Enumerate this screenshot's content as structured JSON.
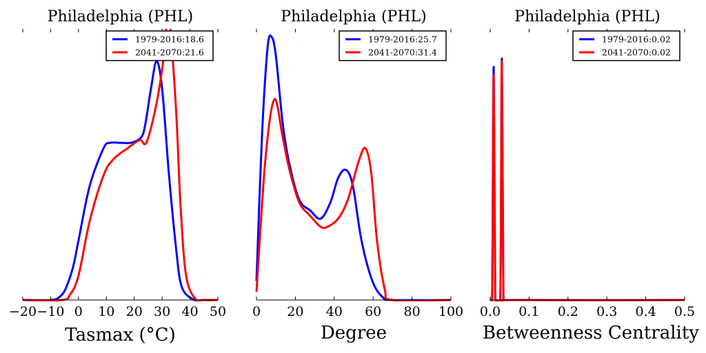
{
  "chart_data": [
    {
      "type": "line",
      "title": "Philadelphia (PHL)",
      "xlabel": "Tasmax ($^\\circ$C)",
      "xlabel_display": "Tasmax (°C)",
      "ylabel": "",
      "xlim": [
        -20,
        50
      ],
      "ylim": [
        0,
        1
      ],
      "xticks": [
        -20,
        -10,
        0,
        10,
        20,
        30,
        40,
        50
      ],
      "xtick_labels": [
        "−20",
        "−10",
        "0",
        "10",
        "20",
        "30",
        "40",
        "50"
      ],
      "grid": false,
      "legend_position": "top-right",
      "series": [
        {
          "name": "1979-2016:18.6",
          "color": "#0000ff",
          "x": [
            -20,
            -10,
            -7,
            -4.7,
            -2,
            0,
            4,
            9,
            11.4,
            15,
            18.8,
            22.5,
            24,
            26,
            28,
            30,
            32.4,
            35,
            37,
            41,
            45,
            50
          ],
          "y": [
            0,
            0,
            0.01,
            0.04,
            0.12,
            0.22,
            0.42,
            0.56,
            0.58,
            0.58,
            0.58,
            0.6,
            0.65,
            0.78,
            0.88,
            0.78,
            0.47,
            0.19,
            0.05,
            0.003,
            0,
            0
          ]
        },
        {
          "name": "2041-2070:21.6",
          "color": "#ff0000",
          "x": [
            -20,
            -6,
            -3,
            0,
            4,
            9,
            12.6,
            17.6,
            22,
            24.3,
            27.5,
            30,
            31,
            32.5,
            35,
            36.6,
            38.6,
            42,
            45,
            50
          ],
          "y": [
            0,
            0,
            0.02,
            0.09,
            0.29,
            0.46,
            0.52,
            0.56,
            0.59,
            0.58,
            0.7,
            0.85,
            0.95,
            1.05,
            0.7,
            0.35,
            0.09,
            0.003,
            0,
            0
          ]
        }
      ]
    },
    {
      "type": "line",
      "title": "Philadelphia (PHL)",
      "xlabel": "Degree",
      "xlabel_display": "Degree",
      "ylabel": "",
      "xlim": [
        0,
        100
      ],
      "ylim": [
        0,
        1
      ],
      "xticks": [
        0,
        20,
        40,
        60,
        80,
        100
      ],
      "xtick_labels": [
        "0",
        "20",
        "40",
        "60",
        "80",
        "100"
      ],
      "grid": false,
      "legend_position": "top-right",
      "series": [
        {
          "name": "1979-2016:25.7",
          "color": "#0000ff",
          "x": [
            0,
            2.8,
            5.7,
            7.8,
            10,
            13.5,
            17,
            22,
            27.7,
            33,
            38,
            42,
            46,
            49.6,
            54,
            59.6,
            65,
            70,
            100
          ],
          "y": [
            0.07,
            0.6,
            0.93,
            0.97,
            0.9,
            0.65,
            0.5,
            0.37,
            0.33,
            0.3,
            0.36,
            0.45,
            0.48,
            0.42,
            0.22,
            0.07,
            0.01,
            0,
            0
          ]
        },
        {
          "name": "2041-2070:31.4",
          "color": "#ff0000",
          "x": [
            0,
            4.6,
            9.2,
            13.5,
            17,
            22,
            27.7,
            33,
            36.5,
            42,
            47,
            52.5,
            56,
            59,
            62,
            66,
            70,
            100
          ],
          "y": [
            0.03,
            0.52,
            0.74,
            0.6,
            0.48,
            0.36,
            0.31,
            0.27,
            0.27,
            0.3,
            0.37,
            0.51,
            0.56,
            0.47,
            0.22,
            0.04,
            0,
            0
          ]
        }
      ]
    },
    {
      "type": "line",
      "title": "Philadelphia (PHL)",
      "xlabel": "Betweenness Centrality",
      "xlabel_display": "Betweenness Centrality",
      "ylabel": "",
      "xlim": [
        0,
        0.5
      ],
      "ylim": [
        0,
        1
      ],
      "xticks": [
        0,
        0.1,
        0.2,
        0.3,
        0.4,
        0.5
      ],
      "xtick_labels": [
        "0.0",
        "0.1",
        "0.2",
        "0.3",
        "0.4",
        "0.5"
      ],
      "grid": false,
      "legend_position": "top-right",
      "series": [
        {
          "name": "1979-2016:0.02",
          "color": "#0000ff",
          "x": [
            0,
            0.005,
            0.009,
            0.013,
            0.018,
            0.026,
            0.03,
            0.034,
            0.04,
            0.5
          ],
          "y": [
            0,
            0.01,
            0.86,
            0.01,
            0,
            0.01,
            0.89,
            0.01,
            0,
            0
          ]
        },
        {
          "name": "2041-2070:0.02",
          "color": "#ff0000",
          "x": [
            0,
            0.005,
            0.009,
            0.013,
            0.018,
            0.026,
            0.03,
            0.034,
            0.04,
            0.5
          ],
          "y": [
            0,
            0.01,
            0.83,
            0.01,
            0,
            0.01,
            0.88,
            0.01,
            0,
            0
          ]
        }
      ]
    }
  ]
}
